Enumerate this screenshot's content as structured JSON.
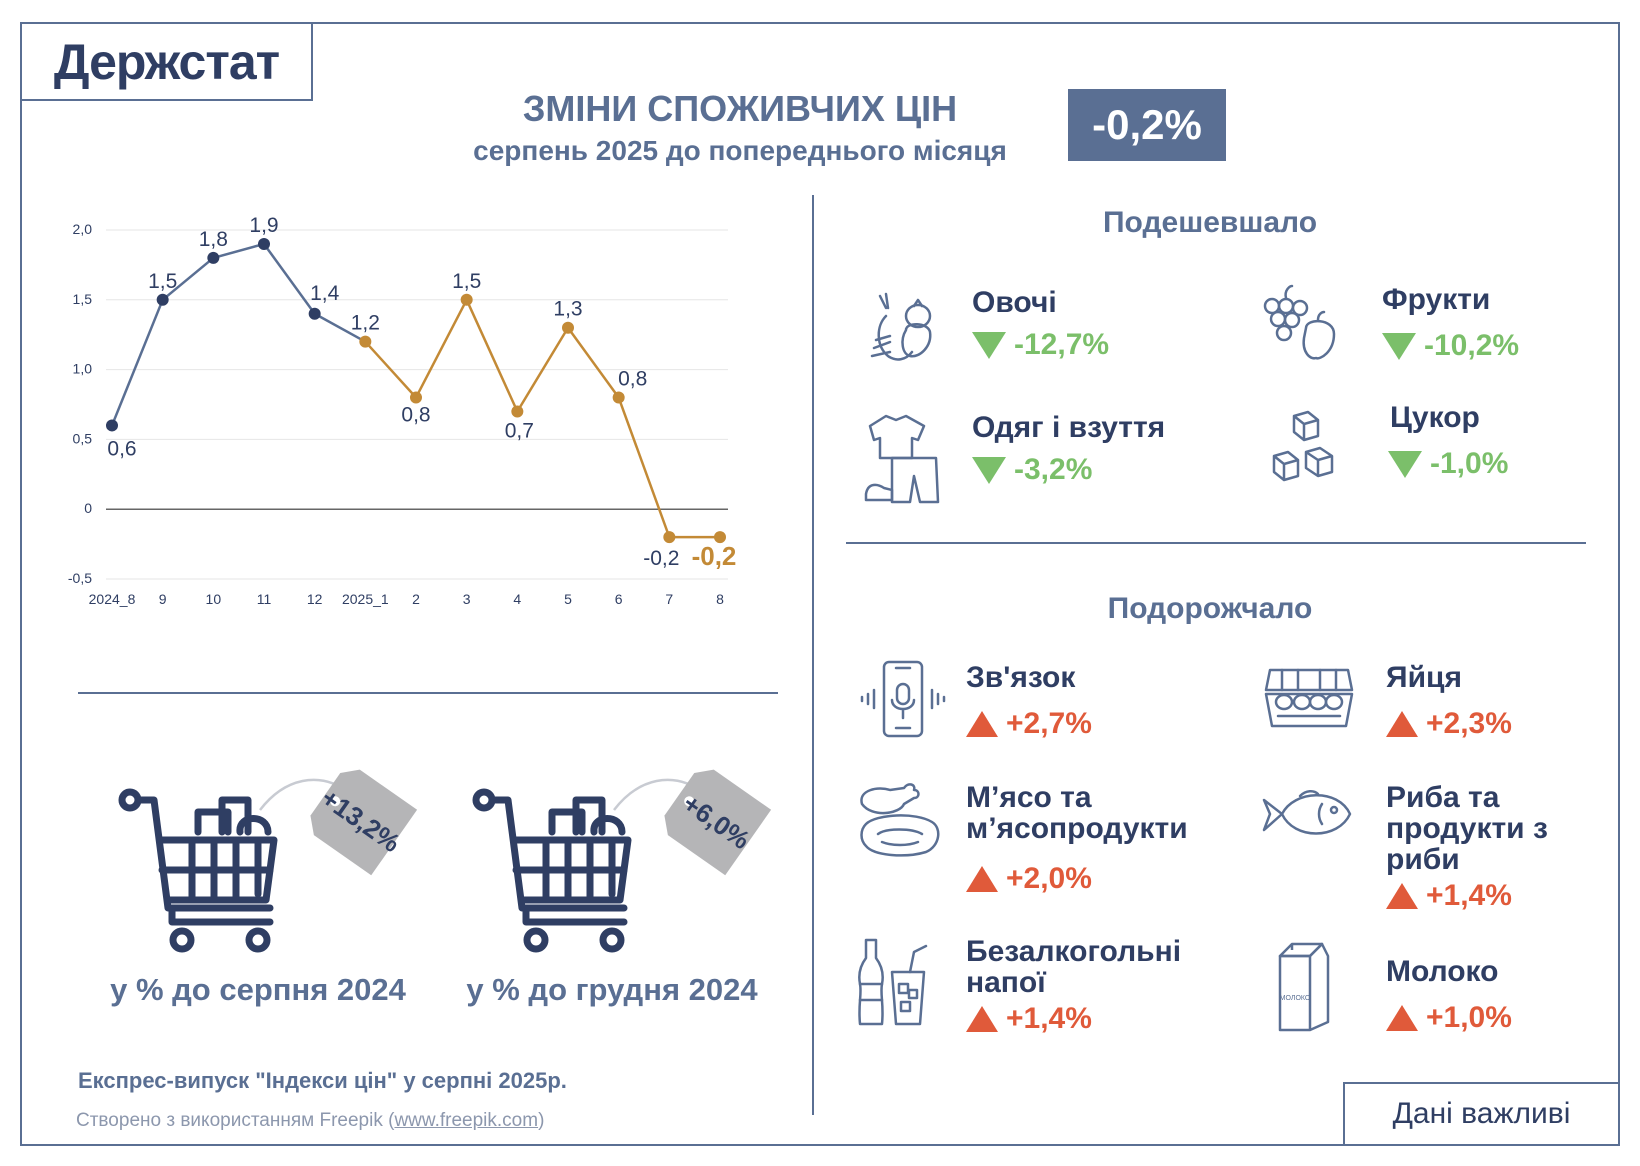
{
  "header": {
    "logo": "Держстат",
    "title": "ЗМІНИ СПОЖИВЧИХ ЦІН",
    "subtitle": "серпень 2025 до попереднього місяця",
    "headline_value": "-0,2%"
  },
  "chart_data": {
    "type": "line",
    "categories": [
      "2024_8",
      "9",
      "10",
      "11",
      "12",
      "2025_1",
      "2",
      "3",
      "4",
      "5",
      "6",
      "7",
      "8"
    ],
    "values": [
      0.6,
      1.5,
      1.8,
      1.9,
      1.4,
      1.2,
      0.8,
      1.5,
      0.7,
      1.3,
      0.8,
      -0.2,
      -0.2
    ],
    "value_labels": [
      "0,6",
      "1,5",
      "1,8",
      "1,9",
      "1,4",
      "1,2",
      "0,8",
      "1,5",
      "0,7",
      "1,3",
      "0,8",
      "-0,2",
      "-0,2"
    ],
    "y_ticks": [
      "-0,5",
      "0",
      "0,5",
      "1,0",
      "1,5",
      "2,0"
    ],
    "ylim": [
      -0.5,
      2.0
    ],
    "grid": true,
    "series_colors": {
      "2024": "#2f3e63",
      "2025": "#c38a36"
    },
    "title": "",
    "xlabel": "",
    "ylabel": ""
  },
  "cheaper": {
    "heading": "Подешевшало",
    "items": [
      {
        "name": "Овочі",
        "value": "-12,7%",
        "icon": "vegetables-icon"
      },
      {
        "name": "Фрукти",
        "value": "-10,2%",
        "icon": "fruits-icon"
      },
      {
        "name": "Одяг і взуття",
        "value": "-3,2%",
        "icon": "clothes-icon"
      },
      {
        "name": "Цукор",
        "value": "-1,0%",
        "icon": "sugar-icon"
      }
    ]
  },
  "pricier": {
    "heading": "Подорожчало",
    "items": [
      {
        "name": "Зв'язок",
        "value": "+2,7%",
        "icon": "phone-icon"
      },
      {
        "name": "Яйця",
        "value": "+2,3%",
        "icon": "eggs-icon"
      },
      {
        "name": "М’ясо та м’ясопродукти",
        "value": "+2,0%",
        "icon": "meat-icon"
      },
      {
        "name": "Риба та продукти з риби",
        "value": "+1,4%",
        "icon": "fish-icon"
      },
      {
        "name": "Безалкогольні напої",
        "value": "+1,4%",
        "icon": "drinks-icon"
      },
      {
        "name": "Молоко",
        "value": "+1,0%",
        "icon": "milk-icon"
      }
    ]
  },
  "milk_carton_text": "МОЛОКО",
  "carts": [
    {
      "tag": "+13,2%",
      "label": "у % до серпня 2024"
    },
    {
      "tag": "+6,0%",
      "label": "у % до грудня 2024"
    }
  ],
  "footer": {
    "release": "Експрес-випуск \"Індекси цін\" у серпні 2025р.",
    "credit_prefix": "Створено з використанням Freepik (",
    "credit_link": "www.freepik.com",
    "credit_suffix": ")",
    "important": "Дані важливі"
  }
}
